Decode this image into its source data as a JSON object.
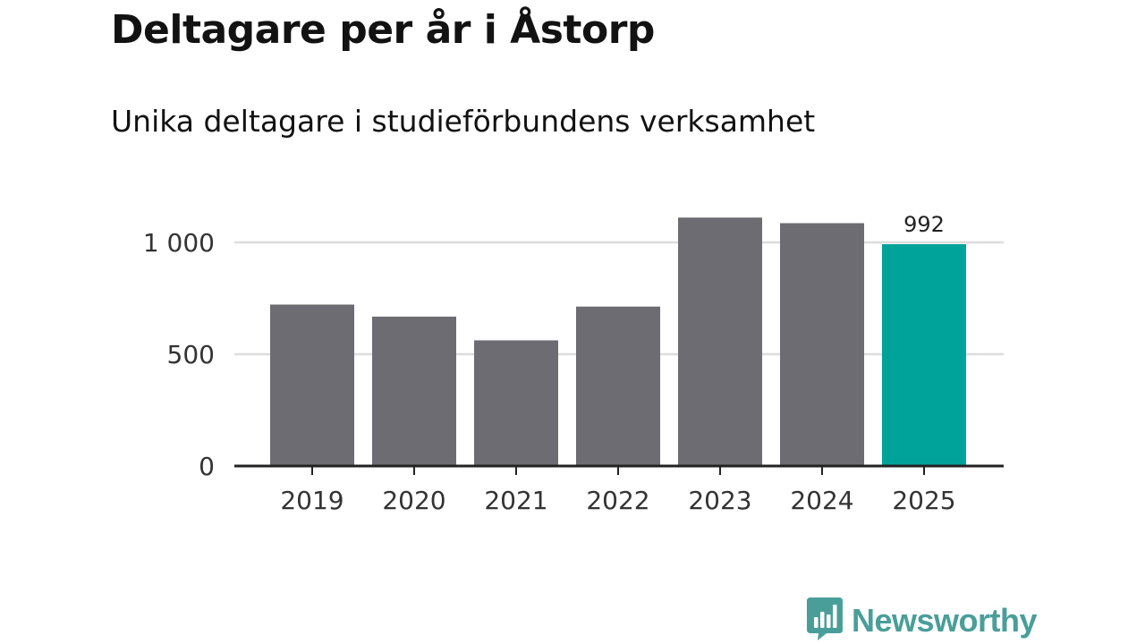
{
  "header": {
    "title": "Deltagare per år i Åstorp",
    "subtitle": "Unika deltagare i studieförbundens verksamhet"
  },
  "chart_data": {
    "type": "bar",
    "title": "Deltagare per år i Åstorp",
    "subtitle": "Unika deltagare i studieförbundens verksamhet",
    "categories": [
      "2019",
      "2020",
      "2021",
      "2022",
      "2023",
      "2024",
      "2025"
    ],
    "values": [
      722,
      668,
      562,
      713,
      1111,
      1086,
      992
    ],
    "highlight_index": 6,
    "data_labels": [
      {
        "index": 6,
        "text": "992"
      }
    ],
    "yticks": [
      0,
      500,
      1000
    ],
    "ytick_labels": [
      "0",
      "500",
      "1 000"
    ],
    "ylim": [
      0,
      1150
    ],
    "grid": true,
    "xlabel": "",
    "ylabel": "",
    "colors": {
      "bar": "#6d6c72",
      "highlight": "#00a39a",
      "grid": "#dcdcdc",
      "axis": "#222222"
    }
  },
  "brand": {
    "name": "Newsworthy",
    "color": "#4a9e99",
    "icon": "bar-chart-speech-bubble-icon"
  }
}
